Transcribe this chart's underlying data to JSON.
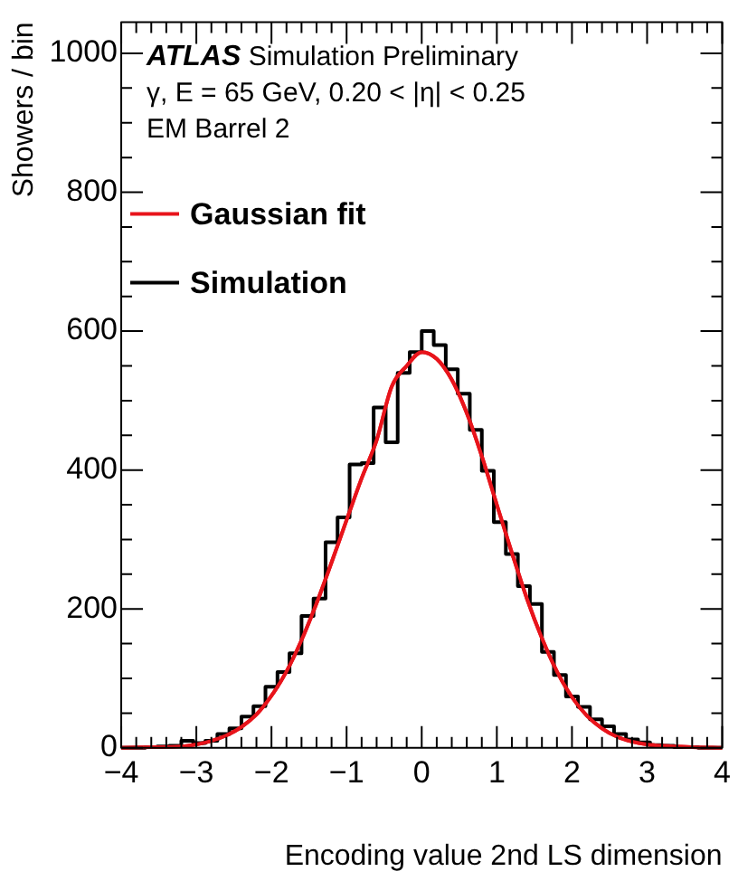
{
  "chart_data": {
    "type": "histogram",
    "xlabel": "Encoding value 2nd LS dimension",
    "ylabel": "Showers / bin",
    "annotations": [
      "ATLAS Simulation Preliminary",
      "γ, E = 65 GeV, 0.20 < |η| < 0.25",
      "EM Barrel 2"
    ],
    "bins": [
      -4,
      -3.84,
      -3.68,
      -3.52,
      -3.36,
      -3.2,
      -3.04,
      -2.88,
      -2.72,
      -2.56,
      -2.4,
      -2.24,
      -2.08,
      -1.92,
      -1.76,
      -1.6,
      -1.44,
      -1.28,
      -1.12,
      -0.96,
      -0.8,
      -0.64,
      -0.48,
      -0.32,
      -0.16,
      0,
      0.16,
      0.32,
      0.48,
      0.64,
      0.8,
      0.96,
      1.12,
      1.28,
      1.44,
      1.6,
      1.76,
      1.92,
      2.08,
      2.24,
      2.4,
      2.56,
      2.72,
      2.88,
      3.04,
      3.2,
      3.36,
      3.52,
      3.68,
      3.84,
      4
    ],
    "series": [
      {
        "name": "Gaussian fit",
        "type": "line",
        "color": "#e8141b",
        "x": [
          -4,
          -3.6,
          -3.2,
          -3,
          -2.8,
          -2.6,
          -2.4,
          -2.2,
          -2,
          -1.8,
          -1.6,
          -1.4,
          -1.2,
          -1,
          -0.8,
          -0.6,
          -0.4,
          -0.2,
          0,
          0.2,
          0.4,
          0.6,
          0.8,
          1,
          1.2,
          1.4,
          1.6,
          1.8,
          2,
          2.2,
          2.4,
          2.6,
          2.8,
          3,
          3.2,
          3.6,
          4
        ],
        "values": [
          0,
          1,
          2,
          5,
          10,
          18,
          30,
          48,
          75,
          110,
          155,
          208,
          267,
          328,
          388,
          443,
          520,
          550,
          570,
          560,
          530,
          482,
          420,
          350,
          281,
          215,
          158,
          110,
          73,
          46,
          28,
          16,
          9,
          5,
          3,
          1,
          0
        ]
      },
      {
        "name": "Simulation",
        "color": "#000000",
        "values": [
          0,
          0,
          1,
          2,
          3,
          10,
          7,
          10,
          20,
          28,
          45,
          60,
          88,
          109,
          136,
          190,
          215,
          296,
          332,
          408,
          410,
          490,
          440,
          540,
          570,
          600,
          580,
          545,
          510,
          458,
          399,
          325,
          279,
          233,
          207,
          138,
          105,
          74,
          59,
          41,
          31,
          20,
          12,
          8,
          4,
          3,
          1,
          1,
          0,
          0
        ]
      }
    ],
    "xlim": [
      -4,
      4
    ],
    "xticks": [
      -4,
      -3,
      -2,
      -1,
      0,
      1,
      2,
      3,
      4
    ],
    "ylim": [
      0,
      1045
    ],
    "yticks": [
      0,
      200,
      400,
      600,
      800,
      1000
    ],
    "legend": "top left",
    "grid": false,
    "line_style": "solid",
    "marker": "none"
  }
}
